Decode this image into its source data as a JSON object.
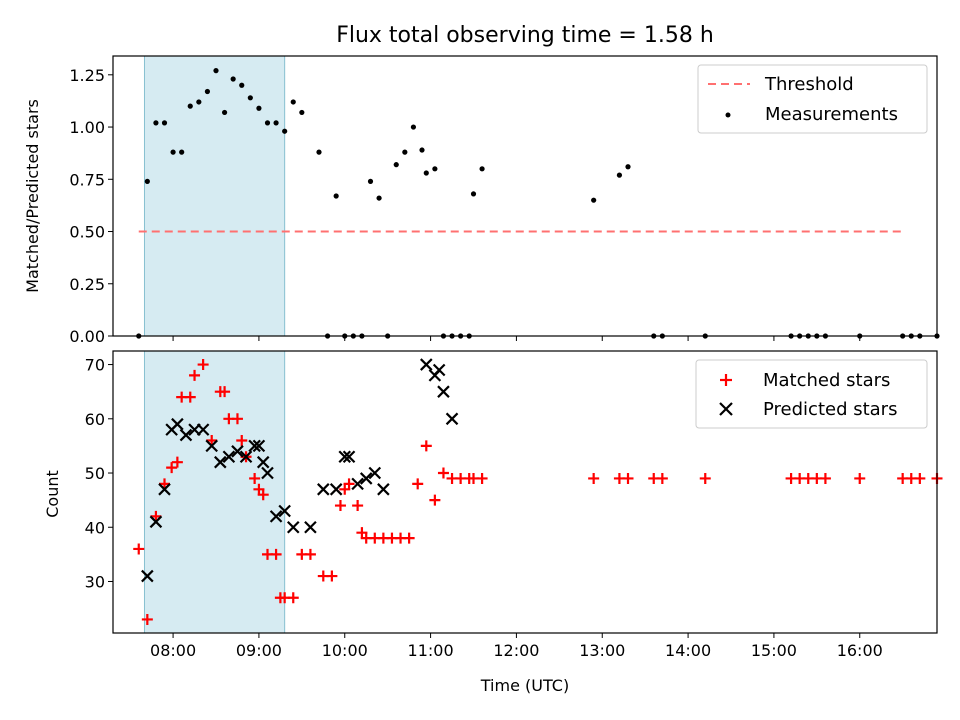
{
  "chart_data": [
    {
      "type": "scatter",
      "title": "Flux total observing time = 1.58 h",
      "xlabel": "",
      "ylabel": "Matched/Predicted stars",
      "xlim": [
        "07:18",
        "16:54"
      ],
      "ylim": [
        0,
        1.34
      ],
      "yticks": [
        "0.00",
        "0.25",
        "0.50",
        "0.75",
        "1.00",
        "1.25"
      ],
      "legend_position": "top-right",
      "shaded_span": {
        "from": "07:40",
        "to": "09:18"
      },
      "colors": {
        "shade": "#add8e6",
        "threshold": "#ff7070",
        "points": "#000000"
      },
      "series": [
        {
          "name": "Threshold",
          "style": "dashed-line",
          "x": [
            "07:36",
            "16:30"
          ],
          "y": [
            0.5,
            0.5
          ]
        },
        {
          "name": "Measurements",
          "style": "dot",
          "x": [
            "07:36",
            "07:42",
            "07:48",
            "07:54",
            "08:00",
            "08:06",
            "08:12",
            "08:18",
            "08:24",
            "08:30",
            "08:36",
            "08:42",
            "08:48",
            "08:54",
            "09:00",
            "09:06",
            "09:12",
            "09:18",
            "09:24",
            "09:30",
            "09:42",
            "09:48",
            "09:54",
            "10:00",
            "10:06",
            "10:12",
            "10:18",
            "10:24",
            "10:30",
            "10:36",
            "10:42",
            "10:48",
            "10:54",
            "10:57",
            "11:03",
            "11:09",
            "11:15",
            "11:21",
            "11:27",
            "11:30",
            "11:36",
            "12:54",
            "13:12",
            "13:18",
            "13:36",
            "13:42",
            "14:12",
            "15:12",
            "15:18",
            "15:24",
            "15:30",
            "15:36",
            "16:00",
            "16:30",
            "16:36",
            "16:42",
            "16:54"
          ],
          "y": [
            0,
            0.74,
            1.02,
            1.02,
            0.88,
            0.88,
            1.1,
            1.12,
            1.17,
            1.27,
            1.07,
            1.23,
            1.2,
            1.14,
            1.09,
            1.02,
            1.02,
            0.98,
            1.12,
            1.07,
            0.88,
            0,
            0.67,
            0,
            0,
            0,
            0.74,
            0.66,
            0,
            0.82,
            0.88,
            1.0,
            0.89,
            0.78,
            0.8,
            0,
            0,
            0,
            0,
            0.68,
            0.8,
            0.65,
            0.77,
            0.81,
            0,
            0,
            0,
            0,
            0,
            0,
            0,
            0,
            0,
            0,
            0,
            0,
            0
          ]
        }
      ]
    },
    {
      "type": "scatter",
      "title": "",
      "xlabel": "Time (UTC)",
      "ylabel": "Count",
      "xlim": [
        "07:18",
        "16:54"
      ],
      "ylim": [
        20.5,
        72.5
      ],
      "xticks": [
        "08:00",
        "09:00",
        "10:00",
        "11:00",
        "12:00",
        "13:00",
        "14:00",
        "15:00",
        "16:00"
      ],
      "yticks": [
        "30",
        "40",
        "50",
        "60",
        "70"
      ],
      "legend_position": "top-right",
      "shaded_span": {
        "from": "07:40",
        "to": "09:18"
      },
      "colors": {
        "shade": "#add8e6",
        "matched": "#ff0000",
        "predicted": "#000000"
      },
      "series": [
        {
          "name": "Matched stars",
          "style": "plus",
          "x": [
            "07:36",
            "07:42",
            "07:48",
            "07:54",
            "07:59",
            "08:03",
            "08:06",
            "08:12",
            "08:15",
            "08:21",
            "08:27",
            "08:33",
            "08:36",
            "08:39",
            "08:45",
            "08:48",
            "08:51",
            "08:57",
            "09:00",
            "09:03",
            "09:06",
            "09:12",
            "09:15",
            "09:18",
            "09:24",
            "09:30",
            "09:36",
            "09:45",
            "09:51",
            "09:57",
            "10:00",
            "10:03",
            "10:09",
            "10:12",
            "10:15",
            "10:21",
            "10:27",
            "10:33",
            "10:39",
            "10:45",
            "10:51",
            "10:57",
            "11:03",
            "11:09",
            "11:15",
            "11:21",
            "11:27",
            "11:30",
            "11:36",
            "12:54",
            "13:12",
            "13:18",
            "13:36",
            "13:42",
            "14:12",
            "15:12",
            "15:18",
            "15:24",
            "15:30",
            "15:36",
            "16:00",
            "16:30",
            "16:36",
            "16:42",
            "16:54"
          ],
          "y": [
            36,
            23,
            42,
            48,
            51,
            52,
            64,
            64,
            68,
            70,
            56,
            65,
            65,
            60,
            60,
            56,
            53,
            49,
            47,
            46,
            35,
            35,
            27,
            27,
            27,
            35,
            35,
            31,
            31,
            44,
            47,
            48,
            44,
            39,
            38,
            38,
            38,
            38,
            38,
            38,
            48,
            55,
            45,
            50,
            49,
            49,
            49,
            49,
            49,
            49,
            49,
            49,
            49,
            49,
            49,
            49,
            49,
            49,
            49,
            49,
            49,
            49,
            49,
            49,
            49
          ]
        },
        {
          "name": "Predicted stars",
          "style": "x",
          "x": [
            "07:42",
            "07:48",
            "07:54",
            "07:59",
            "08:03",
            "08:09",
            "08:15",
            "08:21",
            "08:27",
            "08:33",
            "08:39",
            "08:45",
            "08:51",
            "08:57",
            "09:00",
            "09:03",
            "09:06",
            "09:12",
            "09:18",
            "09:24",
            "09:36",
            "09:45",
            "09:54",
            "10:00",
            "10:03",
            "10:09",
            "10:15",
            "10:21",
            "10:27",
            "10:57",
            "11:03",
            "11:06",
            "11:09",
            "11:15"
          ],
          "y": [
            31,
            41,
            47,
            58,
            59,
            57,
            58,
            58,
            55,
            52,
            53,
            54,
            53,
            55,
            55,
            52,
            50,
            42,
            43,
            40,
            40,
            47,
            47,
            53,
            53,
            48,
            49,
            50,
            47,
            70,
            68,
            69,
            65,
            60
          ]
        }
      ]
    }
  ]
}
